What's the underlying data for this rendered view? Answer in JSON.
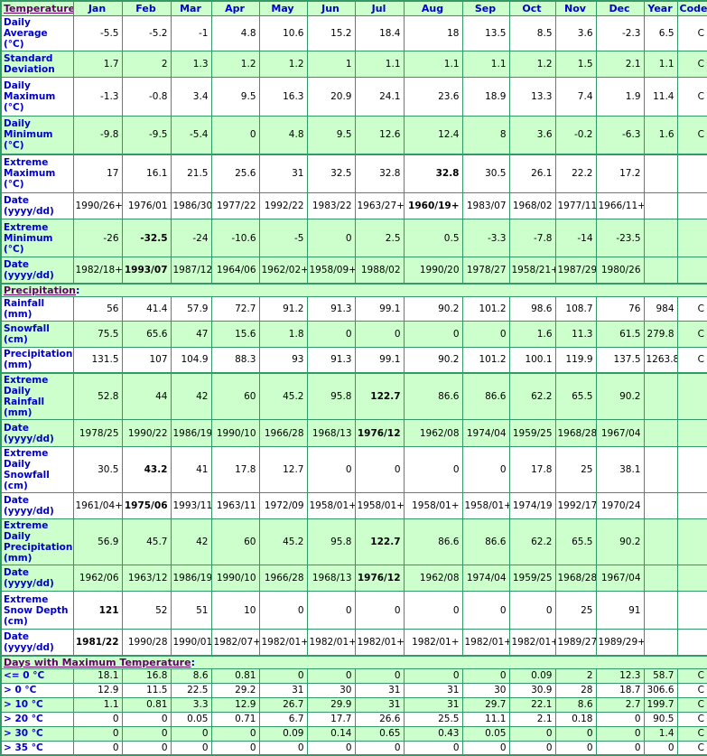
{
  "colors": {
    "header_bg": "#ccffcc",
    "border": "#339966",
    "label": "#0000cc",
    "section_link": "#660066"
  },
  "header": {
    "section": "Temperature",
    "columns": [
      "Jan",
      "Feb",
      "Mar",
      "Apr",
      "May",
      "Jun",
      "Jul",
      "Aug",
      "Sep",
      "Oct",
      "Nov",
      "Dec",
      "Year",
      "Code"
    ]
  },
  "sections": [
    {
      "title": "Temperature",
      "rows": [
        {
          "label": "Daily Average (°C)",
          "bg": "w",
          "h": 29,
          "cells": [
            "-5.5",
            "-5.2",
            "-1",
            "4.8",
            "10.6",
            "15.2",
            "18.4",
            "18",
            "13.5",
            "8.5",
            "3.6",
            "-2.3",
            "6.5",
            "C"
          ]
        },
        {
          "label": "Standard Deviation",
          "bg": "g",
          "h": 29,
          "cells": [
            "1.7",
            "2",
            "1.3",
            "1.2",
            "1.2",
            "1",
            "1.1",
            "1.1",
            "1.1",
            "1.2",
            "1.5",
            "2.1",
            "1.1",
            "C"
          ]
        },
        {
          "label": "Daily Maximum (°C)",
          "bg": "w",
          "h": 43,
          "cells": [
            "-1.3",
            "-0.8",
            "3.4",
            "9.5",
            "16.3",
            "20.9",
            "24.1",
            "23.6",
            "18.9",
            "13.3",
            "7.4",
            "1.9",
            "11.4",
            "C"
          ]
        },
        {
          "label": "Daily Minimum (°C)",
          "bg": "g",
          "h": 42,
          "cells": [
            "-9.8",
            "-9.5",
            "-5.4",
            "0",
            "4.8",
            "9.5",
            "12.6",
            "12.4",
            "8",
            "3.6",
            "-0.2",
            "-6.3",
            "1.6",
            "C"
          ]
        },
        {
          "label": "Extreme Maximum (°C)",
          "bg": "w",
          "h": 43,
          "thick": true,
          "bold": 7,
          "cells": [
            "17",
            "16.1",
            "21.5",
            "25.6",
            "31",
            "32.5",
            "32.8",
            "32.8",
            "30.5",
            "26.1",
            "22.2",
            "17.2",
            "",
            ""
          ]
        },
        {
          "label": "Date (yyyy/dd)",
          "bg": "w",
          "h": 29,
          "bold": 7,
          "cells": [
            "1990/26+",
            "1976/01",
            "1986/30",
            "1977/22",
            "1992/22",
            "1983/22",
            "1963/27+",
            "1960/19+",
            "1983/07",
            "1968/02",
            "1977/11",
            "1966/11+",
            "",
            ""
          ]
        },
        {
          "label": "Extreme Minimum (°C)",
          "bg": "g",
          "h": 42,
          "bold": 1,
          "cells": [
            "-26",
            "-32.5",
            "-24",
            "-10.6",
            "-5",
            "0",
            "2.5",
            "0.5",
            "-3.3",
            "-7.8",
            "-14",
            "-23.5",
            "",
            ""
          ]
        },
        {
          "label": "Date (yyyy/dd)",
          "bg": "g",
          "h": 29,
          "bold": 1,
          "cells": [
            "1982/18+",
            "1993/07",
            "1987/12",
            "1964/06",
            "1962/02+",
            "1958/09+",
            "1988/02",
            "1990/20",
            "1978/27",
            "1958/21+",
            "1987/29",
            "1980/26",
            "",
            ""
          ]
        }
      ]
    },
    {
      "title": "Precipitation",
      "rows": [
        {
          "label": "Rainfall (mm)",
          "bg": "w",
          "h": 17,
          "cells": [
            "56",
            "41.4",
            "57.9",
            "72.7",
            "91.2",
            "91.3",
            "99.1",
            "90.2",
            "101.2",
            "98.6",
            "108.7",
            "76",
            "984",
            "C"
          ]
        },
        {
          "label": "Snowfall (cm)",
          "bg": "g",
          "h": 29,
          "cells": [
            "75.5",
            "65.6",
            "47",
            "15.6",
            "1.8",
            "0",
            "0",
            "0",
            "0",
            "1.6",
            "11.3",
            "61.5",
            "279.8",
            "C"
          ]
        },
        {
          "label": "Precipitation (mm)",
          "bg": "w",
          "h": 29,
          "cells": [
            "131.5",
            "107",
            "104.9",
            "88.3",
            "93",
            "91.3",
            "99.1",
            "90.2",
            "101.2",
            "100.1",
            "119.9",
            "137.5",
            "1263.8",
            "C"
          ]
        },
        {
          "label": "Extreme Daily Rainfall (mm)",
          "bg": "g",
          "h": 30,
          "thick": true,
          "bold": 6,
          "cells": [
            "52.8",
            "44",
            "42",
            "60",
            "45.2",
            "95.8",
            "122.7",
            "86.6",
            "86.6",
            "62.2",
            "65.5",
            "90.2",
            "",
            ""
          ]
        },
        {
          "label": "Date (yyyy/dd)",
          "bg": "g",
          "h": 30,
          "bold": 6,
          "cells": [
            "1978/25",
            "1990/22",
            "1986/19",
            "1990/10",
            "1966/28",
            "1968/13",
            "1976/12",
            "1962/08",
            "1974/04",
            "1959/25",
            "1968/28",
            "1967/04",
            "",
            ""
          ]
        },
        {
          "label": "Extreme Daily Snowfall (cm)",
          "bg": "w",
          "h": 41,
          "bold": 1,
          "cells": [
            "30.5",
            "43.2",
            "41",
            "17.8",
            "12.7",
            "0",
            "0",
            "0",
            "0",
            "17.8",
            "25",
            "38.1",
            "",
            ""
          ]
        },
        {
          "label": "Date (yyyy/dd)",
          "bg": "w",
          "h": 29,
          "bold": 1,
          "cells": [
            "1961/04+",
            "1975/06",
            "1993/11",
            "1963/11",
            "1972/09",
            "1958/01+",
            "1958/01+",
            "1958/01+",
            "1958/01+",
            "1974/19",
            "1992/17",
            "1970/24",
            "",
            ""
          ]
        },
        {
          "label": "Extreme Daily Precipitation (mm)",
          "bg": "g",
          "h": 43,
          "bold": 6,
          "cells": [
            "56.9",
            "45.7",
            "42",
            "60",
            "45.2",
            "95.8",
            "122.7",
            "86.6",
            "86.6",
            "62.2",
            "65.5",
            "90.2",
            "",
            ""
          ]
        },
        {
          "label": "Date (yyyy/dd)",
          "bg": "g",
          "h": 29,
          "bold": 6,
          "cells": [
            "1962/06",
            "1963/12",
            "1986/19",
            "1990/10",
            "1966/28",
            "1968/13",
            "1976/12",
            "1962/08",
            "1974/04",
            "1959/25",
            "1968/28",
            "1967/04",
            "",
            ""
          ]
        },
        {
          "label": "Extreme Snow Depth (cm)",
          "bg": "w",
          "h": 42,
          "bold": 0,
          "cells": [
            "121",
            "52",
            "51",
            "10",
            "0",
            "0",
            "0",
            "0",
            "0",
            "0",
            "25",
            "91",
            "",
            ""
          ]
        },
        {
          "label": "Date (yyyy/dd)",
          "bg": "w",
          "h": 29,
          "bold": 0,
          "cells": [
            "1981/22",
            "1990/28",
            "1990/01",
            "1982/07+",
            "1982/01+",
            "1982/01+",
            "1982/01+",
            "1982/01+",
            "1982/01+",
            "1982/01+",
            "1989/27",
            "1989/29+",
            "",
            ""
          ]
        }
      ]
    },
    {
      "title": "Days with Maximum Temperature",
      "rows": [
        {
          "label": "<= 0 °C",
          "bg": "g",
          "h": 16,
          "cells": [
            "18.1",
            "16.8",
            "8.6",
            "0.81",
            "0",
            "0",
            "0",
            "0",
            "0",
            "0.09",
            "2",
            "12.3",
            "58.7",
            "C"
          ]
        },
        {
          "label": "> 0 °C",
          "bg": "w",
          "h": 16,
          "cells": [
            "12.9",
            "11.5",
            "22.5",
            "29.2",
            "31",
            "30",
            "31",
            "31",
            "30",
            "30.9",
            "28",
            "18.7",
            "306.6",
            "C"
          ]
        },
        {
          "label": "> 10 °C",
          "bg": "g",
          "h": 16,
          "cells": [
            "1.1",
            "0.81",
            "3.3",
            "12.9",
            "26.7",
            "29.9",
            "31",
            "31",
            "29.7",
            "22.1",
            "8.6",
            "2.7",
            "199.7",
            "C"
          ]
        },
        {
          "label": "> 20 °C",
          "bg": "w",
          "h": 16,
          "cells": [
            "0",
            "0",
            "0.05",
            "0.71",
            "6.7",
            "17.7",
            "26.6",
            "25.5",
            "11.1",
            "2.1",
            "0.18",
            "0",
            "90.5",
            "C"
          ]
        },
        {
          "label": "> 30 °C",
          "bg": "g",
          "h": 16,
          "cells": [
            "0",
            "0",
            "0",
            "0",
            "0.09",
            "0.14",
            "0.65",
            "0.43",
            "0.05",
            "0",
            "0",
            "0",
            "1.4",
            "C"
          ]
        },
        {
          "label": "> 35 °C",
          "bg": "w",
          "h": 16,
          "cells": [
            "0",
            "0",
            "0",
            "0",
            "0",
            "0",
            "0",
            "0",
            "0",
            "0",
            "0",
            "0",
            "0",
            "C"
          ]
        }
      ]
    }
  ]
}
